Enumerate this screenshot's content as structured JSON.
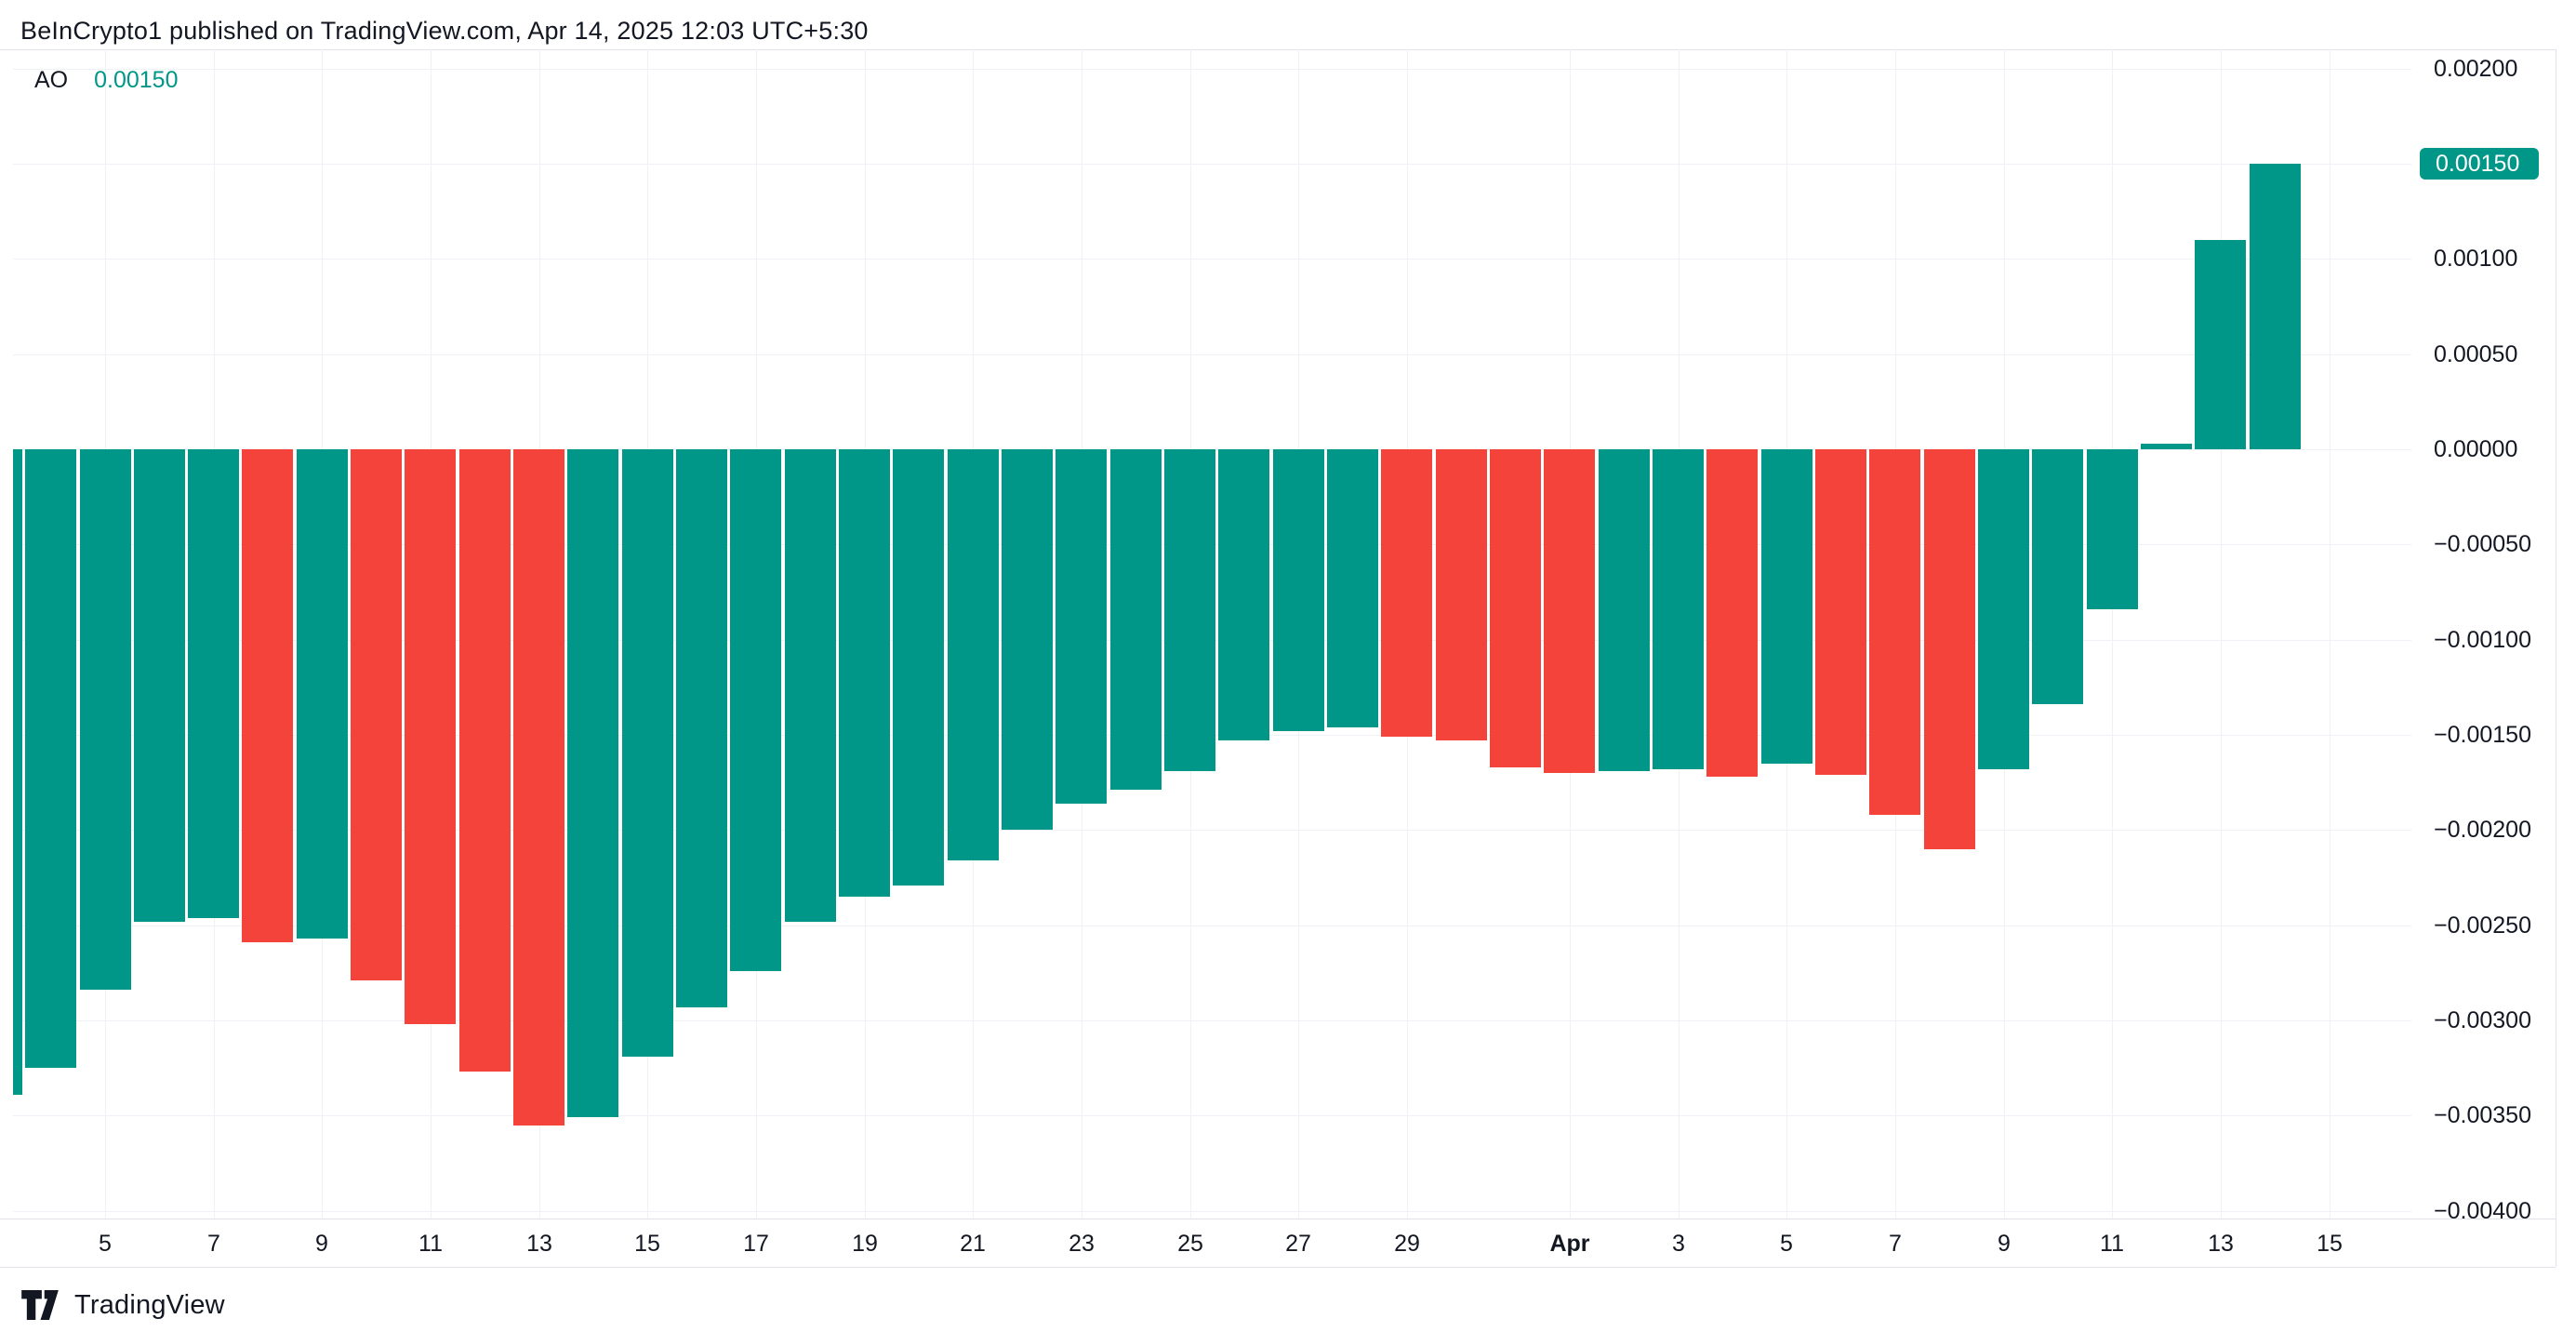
{
  "header": {
    "title": "BeInCrypto1 published on TradingView.com, Apr 14, 2025 12:03 UTC+5:30"
  },
  "legend": {
    "indicator": "AO",
    "value": "0.00150",
    "value_color": "#009688"
  },
  "footer": {
    "brand": "TradingView"
  },
  "colors": {
    "up": "#009688",
    "down": "#F4433A",
    "badge_bg": "#009688",
    "badge_text": "#ffffff",
    "grid": "#eef1f6",
    "border": "#e0e3eb",
    "text": "#131722",
    "background": "#ffffff"
  },
  "chart_data": {
    "type": "bar",
    "title": "AO (Awesome Oscillator)",
    "xlabel": "",
    "ylabel": "",
    "grid": true,
    "legend_position": "top-left",
    "ylim": [
      -0.004,
      0.002
    ],
    "categories": [
      "Mar 3",
      "Mar 4",
      "Mar 5",
      "Mar 6",
      "Mar 7",
      "Mar 8",
      "Mar 9",
      "Mar 10",
      "Mar 11",
      "Mar 12",
      "Mar 13",
      "Mar 14",
      "Mar 15",
      "Mar 16",
      "Mar 17",
      "Mar 18",
      "Mar 19",
      "Mar 20",
      "Mar 21",
      "Mar 22",
      "Mar 23",
      "Mar 24",
      "Mar 25",
      "Mar 26",
      "Mar 27",
      "Mar 28",
      "Mar 29",
      "Mar 30",
      "Mar 31",
      "Apr 1",
      "Apr 2",
      "Apr 3",
      "Apr 4",
      "Apr 5",
      "Apr 6",
      "Apr 7",
      "Apr 8",
      "Apr 9",
      "Apr 10",
      "Apr 11",
      "Apr 12",
      "Apr 13",
      "Apr 14"
    ],
    "values": [
      -0.00339,
      -0.00325,
      -0.00284,
      -0.00248,
      -0.00246,
      -0.00259,
      -0.00257,
      -0.00279,
      -0.00302,
      -0.00327,
      -0.00355,
      -0.00351,
      -0.00319,
      -0.00293,
      -0.00274,
      -0.00248,
      -0.00235,
      -0.00229,
      -0.00216,
      -0.002,
      -0.00186,
      -0.00179,
      -0.00169,
      -0.00153,
      -0.00148,
      -0.00146,
      -0.00151,
      -0.00153,
      -0.00167,
      -0.0017,
      -0.00169,
      -0.00168,
      -0.00172,
      -0.00165,
      -0.00171,
      -0.00192,
      -0.0021,
      -0.00168,
      -0.00134,
      -0.00084,
      3e-05,
      0.0011,
      0.0015
    ],
    "directions": [
      "up",
      "up",
      "up",
      "up",
      "up",
      "down",
      "up",
      "down",
      "down",
      "down",
      "down",
      "up",
      "up",
      "up",
      "up",
      "up",
      "up",
      "up",
      "up",
      "up",
      "up",
      "up",
      "up",
      "up",
      "up",
      "up",
      "down",
      "down",
      "down",
      "down",
      "up",
      "up",
      "down",
      "up",
      "down",
      "down",
      "down",
      "up",
      "up",
      "up",
      "up",
      "up",
      "up"
    ],
    "y_ticks": [
      {
        "label": "0.00200",
        "value": 0.002
      },
      {
        "label": "0.00150",
        "value": 0.0015
      },
      {
        "label": "0.00100",
        "value": 0.001
      },
      {
        "label": "0.00050",
        "value": 0.0005
      },
      {
        "label": "0.00000",
        "value": 0.0
      },
      {
        "label": "−0.00050",
        "value": -0.0005
      },
      {
        "label": "−0.00100",
        "value": -0.001
      },
      {
        "label": "−0.00150",
        "value": -0.0015
      },
      {
        "label": "−0.00200",
        "value": -0.002
      },
      {
        "label": "−0.00250",
        "value": -0.0025
      },
      {
        "label": "−0.00300",
        "value": -0.003
      },
      {
        "label": "−0.00350",
        "value": -0.0035
      },
      {
        "label": "−0.00400",
        "value": -0.004
      }
    ],
    "x_ticks": [
      {
        "label": "5",
        "index": 2,
        "bold": false
      },
      {
        "label": "7",
        "index": 4,
        "bold": false
      },
      {
        "label": "9",
        "index": 6,
        "bold": false
      },
      {
        "label": "11",
        "index": 8,
        "bold": false
      },
      {
        "label": "13",
        "index": 10,
        "bold": false
      },
      {
        "label": "15",
        "index": 12,
        "bold": false
      },
      {
        "label": "17",
        "index": 14,
        "bold": false
      },
      {
        "label": "19",
        "index": 16,
        "bold": false
      },
      {
        "label": "21",
        "index": 18,
        "bold": false
      },
      {
        "label": "23",
        "index": 20,
        "bold": false
      },
      {
        "label": "25",
        "index": 22,
        "bold": false
      },
      {
        "label": "27",
        "index": 24,
        "bold": false
      },
      {
        "label": "29",
        "index": 26,
        "bold": false
      },
      {
        "label": "Apr",
        "index": 29,
        "bold": true
      },
      {
        "label": "3",
        "index": 31,
        "bold": false
      },
      {
        "label": "5",
        "index": 33,
        "bold": false
      },
      {
        "label": "7",
        "index": 35,
        "bold": false
      },
      {
        "label": "9",
        "index": 37,
        "bold": false
      },
      {
        "label": "11",
        "index": 39,
        "bold": false
      },
      {
        "label": "13",
        "index": 41,
        "bold": false
      },
      {
        "label": "15",
        "index": 43,
        "bold": false
      }
    ],
    "last_value_badge": {
      "text": "0.00150",
      "value": 0.0015
    }
  }
}
